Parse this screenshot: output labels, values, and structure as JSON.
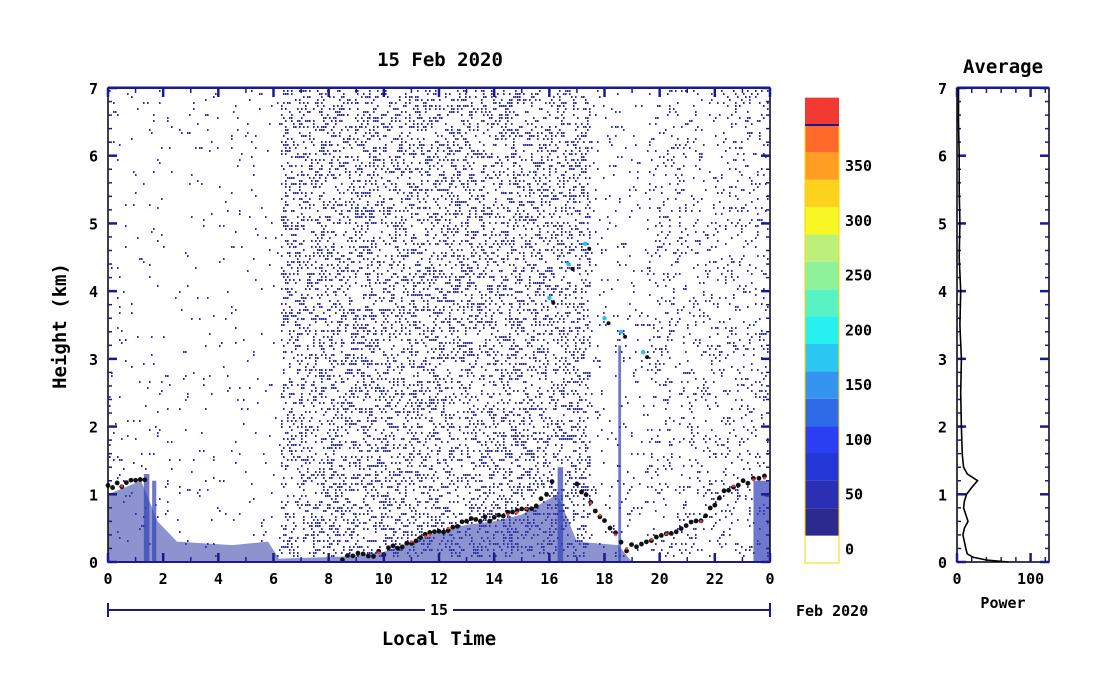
{
  "chart_data": [
    {
      "type": "heatmap",
      "title": "15 Feb 2020",
      "ylabel": "Height (km)",
      "xlabel": "Local Time",
      "x_ticks": [
        "0",
        "2",
        "4",
        "6",
        "8",
        "10",
        "12",
        "14",
        "16",
        "18",
        "20",
        "22",
        "0"
      ],
      "y_ticks": [
        "0",
        "1",
        "2",
        "3",
        "4",
        "5",
        "6",
        "7"
      ],
      "xlim": [
        0,
        24
      ],
      "ylim": [
        0,
        7
      ],
      "date_axis": {
        "day_label": "15",
        "month_label": "Feb 2020"
      },
      "grid": false,
      "colorbar": {
        "ticks": [
          "0",
          "50",
          "100",
          "150",
          "200",
          "250",
          "300",
          "350"
        ],
        "range": [
          -25,
          375
        ],
        "colors": [
          "#2b2a8e",
          "#2a2fb3",
          "#2336d6",
          "#2a3ef2",
          "#2f6ae8",
          "#3494f0",
          "#2bc6f2",
          "#27f0f0",
          "#59f2c2",
          "#8ef29a",
          "#bdf07a",
          "#f7f726",
          "#fcd21c",
          "#ff9e22",
          "#ff6a2a",
          "#f23a32"
        ]
      },
      "features": {
        "cloud_layer": [
          {
            "t": 0.0,
            "h": 1.15
          },
          {
            "t": 0.5,
            "h": 1.12
          },
          {
            "t": 1.0,
            "h": 1.25
          },
          {
            "t": 1.5,
            "h": 1.2
          },
          {
            "t": 8.5,
            "h": 0.05
          },
          {
            "t": 10.0,
            "h": 0.15
          },
          {
            "t": 11.0,
            "h": 0.3
          },
          {
            "t": 12.0,
            "h": 0.45
          },
          {
            "t": 13.0,
            "h": 0.6
          },
          {
            "t": 14.0,
            "h": 0.65
          },
          {
            "t": 15.0,
            "h": 0.75
          },
          {
            "t": 15.7,
            "h": 0.9
          },
          {
            "t": 16.3,
            "h": 1.3
          },
          {
            "t": 17.0,
            "h": 1.15
          },
          {
            "t": 18.0,
            "h": 0.6
          },
          {
            "t": 18.8,
            "h": 0.2
          },
          {
            "t": 21.5,
            "h": 0.6
          },
          {
            "t": 22.5,
            "h": 1.1
          },
          {
            "t": 23.2,
            "h": 1.2
          },
          {
            "t": 24.0,
            "h": 1.25
          }
        ],
        "high_cloud": [
          {
            "t": 16.0,
            "h": 3.9
          },
          {
            "t": 16.7,
            "h": 4.4
          },
          {
            "t": 17.3,
            "h": 4.7
          },
          {
            "t": 18.0,
            "h": 3.6
          },
          {
            "t": 18.6,
            "h": 3.4
          },
          {
            "t": 19.4,
            "h": 3.1
          }
        ]
      }
    },
    {
      "type": "line",
      "title": "Average",
      "xlabel": "Power",
      "ylabel": "",
      "x_ticks": [
        "0",
        "100"
      ],
      "y_ticks": [
        "0",
        "1",
        "2",
        "3",
        "4",
        "5",
        "6",
        "7"
      ],
      "xlim": [
        0,
        125
      ],
      "ylim": [
        0,
        7
      ],
      "profile": [
        {
          "x": 70,
          "y": 0.0
        },
        {
          "x": 40,
          "y": 0.03
        },
        {
          "x": 22,
          "y": 0.07
        },
        {
          "x": 14,
          "y": 0.12
        },
        {
          "x": 12,
          "y": 0.2
        },
        {
          "x": 10,
          "y": 0.3
        },
        {
          "x": 8,
          "y": 0.4
        },
        {
          "x": 10,
          "y": 0.5
        },
        {
          "x": 15,
          "y": 0.6
        },
        {
          "x": 12,
          "y": 0.7
        },
        {
          "x": 9,
          "y": 0.8
        },
        {
          "x": 10,
          "y": 0.9
        },
        {
          "x": 13,
          "y": 1.0
        },
        {
          "x": 20,
          "y": 1.1
        },
        {
          "x": 28,
          "y": 1.2
        },
        {
          "x": 14,
          "y": 1.3
        },
        {
          "x": 9,
          "y": 1.4
        },
        {
          "x": 7,
          "y": 1.6
        },
        {
          "x": 6,
          "y": 2.0
        },
        {
          "x": 5,
          "y": 2.5
        },
        {
          "x": 6,
          "y": 3.0
        },
        {
          "x": 4,
          "y": 3.5
        },
        {
          "x": 5,
          "y": 4.0
        },
        {
          "x": 3,
          "y": 4.5
        },
        {
          "x": 4,
          "y": 5.0
        },
        {
          "x": 3,
          "y": 5.5
        },
        {
          "x": 3,
          "y": 6.0
        },
        {
          "x": 2,
          "y": 6.5
        },
        {
          "x": 2,
          "y": 7.0
        }
      ]
    }
  ]
}
